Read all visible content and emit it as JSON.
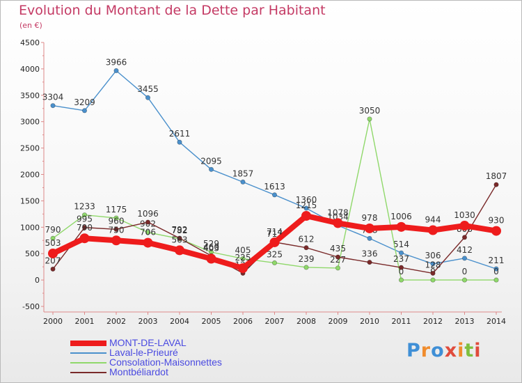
{
  "title": "Evolution du Montant de la Dette par Habitant",
  "unit_label": "(en €)",
  "logo": {
    "text": "Proxiti",
    "colors": [
      "#3f8fd6",
      "#f08c2d",
      "#3f8fd6",
      "#e04b3c",
      "#f08c2d",
      "#7fbf3f",
      "#e04b3c"
    ]
  },
  "chart_data": {
    "type": "line",
    "x": [
      "2000",
      "2001",
      "2002",
      "2003",
      "2004",
      "2005",
      "2006",
      "2007",
      "2008",
      "2009",
      "2010",
      "2011",
      "2012",
      "2013",
      "2014"
    ],
    "ylim": [
      -500,
      4500
    ],
    "yticks": [
      -500,
      0,
      500,
      1000,
      1500,
      2000,
      2500,
      3000,
      3500,
      4000,
      4500
    ],
    "grid": false,
    "legend_position": "bottom-left",
    "series": [
      {
        "name": "Laval-le-Prieuré",
        "color": "#4a90cc",
        "values": [
          3304,
          3209,
          3966,
          3455,
          2611,
          2095,
          1857,
          1613,
          1360,
          1034,
          788,
          514,
          306,
          412,
          211
        ],
        "labels": [
          "3304",
          "3209",
          "3966",
          "3455",
          "2611",
          "2095",
          "1857",
          "1613",
          "1360",
          "1034",
          "788",
          "514",
          "306",
          "412",
          "211"
        ]
      },
      {
        "name": "Consolation-Maisonnettes",
        "color": "#8fd86a",
        "values": [
          790,
          1233,
          1175,
          902,
          782,
          529,
          405,
          325,
          239,
          227,
          3050,
          0,
          0,
          0,
          0
        ],
        "labels": [
          "790",
          "1233",
          "1175",
          "902",
          "782",
          "529",
          "405",
          "325",
          "239",
          "227",
          "3050",
          "0",
          "0",
          "0",
          "0"
        ]
      },
      {
        "name": "Montbéliardot",
        "color": "#7a2a2a",
        "values": [
          207,
          995,
          960,
          1096,
          792,
          460,
          128,
          717,
          612,
          435,
          336,
          237,
          128,
          808,
          1807
        ],
        "labels": [
          "207",
          "995",
          "960",
          "1096",
          "792",
          "460",
          "128",
          "717",
          "612",
          "435",
          "336",
          "237",
          "128",
          "808",
          "1807"
        ]
      },
      {
        "name": "MONT-DE-LAVAL",
        "color": "#ee1c1c",
        "thick": true,
        "values": [
          503,
          790,
          750,
          706,
          563,
          403,
          225,
          714,
          1215,
          1078,
          978,
          1006,
          944,
          1030,
          930
        ],
        "labels": [
          "503",
          "790",
          "750",
          "706",
          "563",
          "403",
          "225",
          "714",
          "1215",
          "1078",
          "978",
          "1006",
          "944",
          "1030",
          "930"
        ]
      }
    ],
    "legend": [
      "MONT-DE-LAVAL",
      "Laval-le-Prieuré",
      "Consolation-Maisonnettes",
      "Montbéliardot"
    ]
  }
}
